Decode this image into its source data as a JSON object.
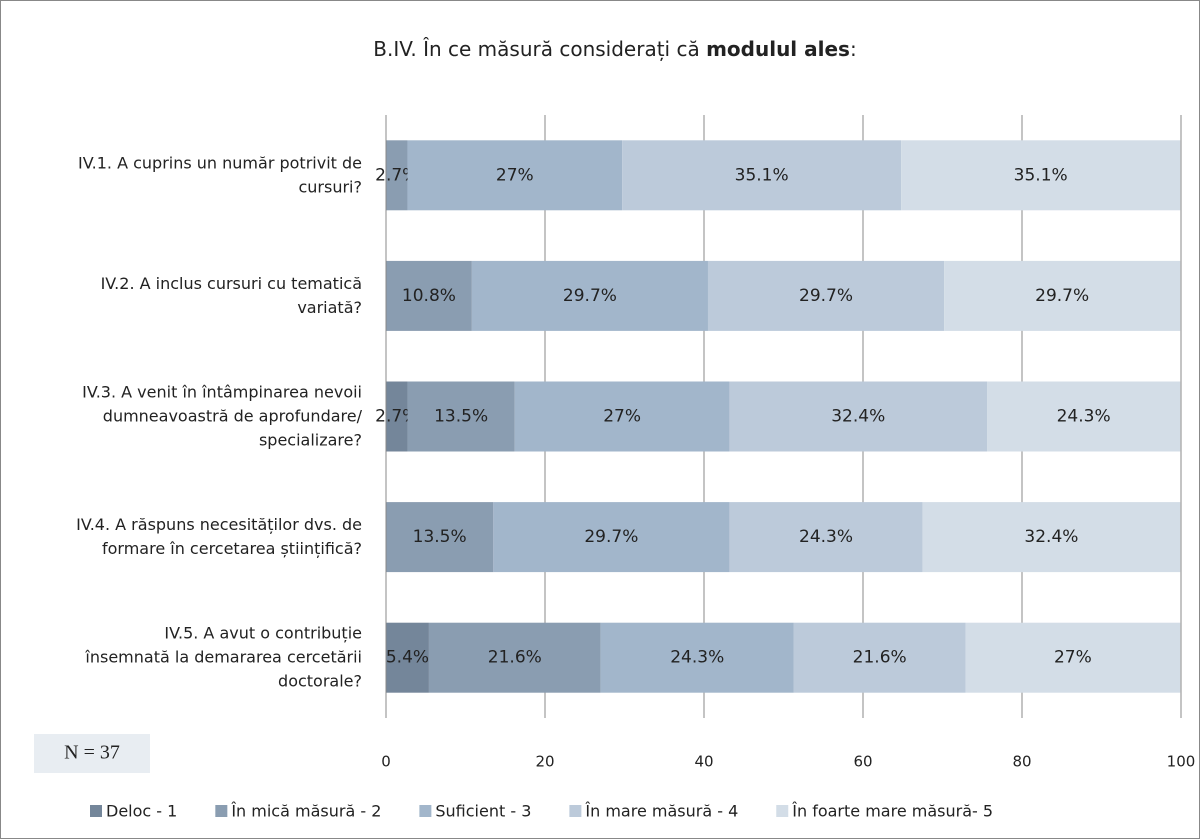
{
  "chart_data": {
    "type": "stacked-bar-horizontal",
    "title": [
      "B.IV. În ce măsură considerați că ",
      "modulul ales",
      ":"
    ],
    "categories": [
      "IV.1. A cuprins un număr potrivit de\ncursuri?",
      "IV.2. A inclus cursuri cu tematică\nvariată?",
      "IV.3. A venit în întâmpinarea nevoii\ndumneavoastră de aprofundare/\nspecializare?",
      "IV.4. A răspuns necesităților dvs. de\nformare în cercetarea științifică?",
      "IV.5. A avut o contribuție\nînsemnată la demararea cercetării\ndoctorale?"
    ],
    "series": [
      {
        "name": "Deloc - 1",
        "color": "#74869a",
        "values": [
          null,
          null,
          2.7,
          null,
          5.4
        ],
        "value_labels": [
          null,
          null,
          "2.7%",
          null,
          "5.4%"
        ]
      },
      {
        "name": "În mică măsură - 2",
        "color": "#8a9db1",
        "values": [
          2.7,
          10.8,
          13.5,
          13.5,
          21.6
        ],
        "value_labels": [
          "2.7%",
          "10.8%",
          "13.5%",
          "13.5%",
          "21.6%"
        ]
      },
      {
        "name": "Suficient - 3",
        "color": "#a2b6cb",
        "values": [
          27,
          29.7,
          27,
          29.7,
          24.3
        ],
        "value_labels": [
          "27%",
          "29.7%",
          "27%",
          "29.7%",
          "24.3%"
        ]
      },
      {
        "name": "În mare măsură - 4",
        "color": "#bccada",
        "values": [
          35.1,
          29.7,
          32.4,
          24.3,
          21.6
        ],
        "value_labels": [
          "35.1%",
          "29.7%",
          "32.4%",
          "24.3%",
          "21.6%"
        ]
      },
      {
        "name": "În foarte mare măsură- 5",
        "color": "#d3dde7",
        "values": [
          35.1,
          29.7,
          24.3,
          32.4,
          27
        ],
        "value_labels": [
          "35.1%",
          "29.7%",
          "24.3%",
          "32.4%",
          "27%"
        ]
      }
    ],
    "xlim": [
      0,
      100
    ],
    "xticks": [
      0,
      20,
      40,
      60,
      80,
      100
    ],
    "grid": true,
    "legend": "bottom",
    "annotation": "N = 37"
  }
}
